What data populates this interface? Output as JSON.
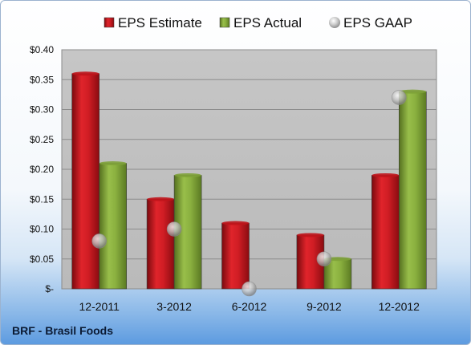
{
  "chart_data": {
    "type": "bar",
    "categories": [
      "12-2011",
      "3-2012",
      "6-2012",
      "9-2012",
      "12-2012"
    ],
    "series": [
      {
        "name": "EPS Estimate",
        "kind": "bar",
        "color": "#c0141b",
        "values": [
          0.36,
          0.15,
          0.11,
          0.09,
          0.19
        ]
      },
      {
        "name": "EPS Actual",
        "kind": "bar",
        "color": "#7ea239",
        "values": [
          0.21,
          0.19,
          null,
          0.05,
          0.33
        ]
      },
      {
        "name": "EPS GAAP",
        "kind": "marker",
        "color": "#bfbfbf",
        "values": [
          0.08,
          0.1,
          0.0,
          0.05,
          0.32
        ]
      }
    ],
    "ylim": [
      0,
      0.4
    ],
    "yticks": [
      0,
      0.05,
      0.1,
      0.15,
      0.2,
      0.25,
      0.3,
      0.35,
      0.4
    ],
    "ytick_labels": [
      "$-",
      "$0.05",
      "$0.10",
      "$0.15",
      "$0.20",
      "$0.25",
      "$0.30",
      "$0.35",
      "$0.40"
    ],
    "grid": true,
    "legend_position": "top",
    "plot_background": "#c0c0c0"
  },
  "footer": {
    "title": "BRF - Brasil Foods"
  }
}
